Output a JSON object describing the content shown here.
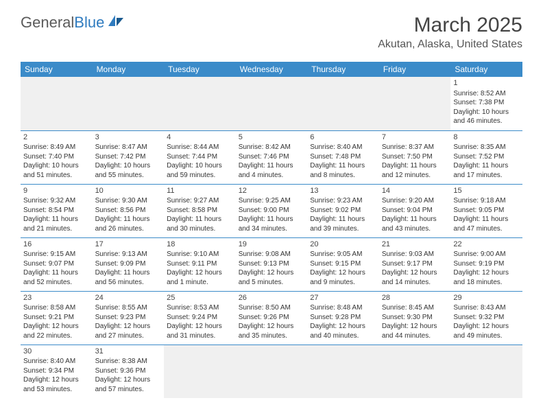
{
  "brand": {
    "part1": "General",
    "part2": "Blue"
  },
  "title": "March 2025",
  "location": "Akutan, Alaska, United States",
  "colors": {
    "header_bg": "#3b8bc9",
    "header_text": "#ffffff",
    "body_text": "#333333",
    "brand_gray": "#5a5a5a",
    "brand_blue": "#2f7bbf",
    "border": "#3b8bc9",
    "empty_bg": "#f0f0f0"
  },
  "typography": {
    "title_fontsize": 30,
    "location_fontsize": 16,
    "dayheader_fontsize": 12,
    "cell_fontsize": 10
  },
  "day_headers": [
    "Sunday",
    "Monday",
    "Tuesday",
    "Wednesday",
    "Thursday",
    "Friday",
    "Saturday"
  ],
  "weeks": [
    [
      null,
      null,
      null,
      null,
      null,
      null,
      {
        "n": "1",
        "sr": "Sunrise: 8:52 AM",
        "ss": "Sunset: 7:38 PM",
        "d1": "Daylight: 10 hours",
        "d2": "and 46 minutes."
      }
    ],
    [
      {
        "n": "2",
        "sr": "Sunrise: 8:49 AM",
        "ss": "Sunset: 7:40 PM",
        "d1": "Daylight: 10 hours",
        "d2": "and 51 minutes."
      },
      {
        "n": "3",
        "sr": "Sunrise: 8:47 AM",
        "ss": "Sunset: 7:42 PM",
        "d1": "Daylight: 10 hours",
        "d2": "and 55 minutes."
      },
      {
        "n": "4",
        "sr": "Sunrise: 8:44 AM",
        "ss": "Sunset: 7:44 PM",
        "d1": "Daylight: 10 hours",
        "d2": "and 59 minutes."
      },
      {
        "n": "5",
        "sr": "Sunrise: 8:42 AM",
        "ss": "Sunset: 7:46 PM",
        "d1": "Daylight: 11 hours",
        "d2": "and 4 minutes."
      },
      {
        "n": "6",
        "sr": "Sunrise: 8:40 AM",
        "ss": "Sunset: 7:48 PM",
        "d1": "Daylight: 11 hours",
        "d2": "and 8 minutes."
      },
      {
        "n": "7",
        "sr": "Sunrise: 8:37 AM",
        "ss": "Sunset: 7:50 PM",
        "d1": "Daylight: 11 hours",
        "d2": "and 12 minutes."
      },
      {
        "n": "8",
        "sr": "Sunrise: 8:35 AM",
        "ss": "Sunset: 7:52 PM",
        "d1": "Daylight: 11 hours",
        "d2": "and 17 minutes."
      }
    ],
    [
      {
        "n": "9",
        "sr": "Sunrise: 9:32 AM",
        "ss": "Sunset: 8:54 PM",
        "d1": "Daylight: 11 hours",
        "d2": "and 21 minutes."
      },
      {
        "n": "10",
        "sr": "Sunrise: 9:30 AM",
        "ss": "Sunset: 8:56 PM",
        "d1": "Daylight: 11 hours",
        "d2": "and 26 minutes."
      },
      {
        "n": "11",
        "sr": "Sunrise: 9:27 AM",
        "ss": "Sunset: 8:58 PM",
        "d1": "Daylight: 11 hours",
        "d2": "and 30 minutes."
      },
      {
        "n": "12",
        "sr": "Sunrise: 9:25 AM",
        "ss": "Sunset: 9:00 PM",
        "d1": "Daylight: 11 hours",
        "d2": "and 34 minutes."
      },
      {
        "n": "13",
        "sr": "Sunrise: 9:23 AM",
        "ss": "Sunset: 9:02 PM",
        "d1": "Daylight: 11 hours",
        "d2": "and 39 minutes."
      },
      {
        "n": "14",
        "sr": "Sunrise: 9:20 AM",
        "ss": "Sunset: 9:04 PM",
        "d1": "Daylight: 11 hours",
        "d2": "and 43 minutes."
      },
      {
        "n": "15",
        "sr": "Sunrise: 9:18 AM",
        "ss": "Sunset: 9:05 PM",
        "d1": "Daylight: 11 hours",
        "d2": "and 47 minutes."
      }
    ],
    [
      {
        "n": "16",
        "sr": "Sunrise: 9:15 AM",
        "ss": "Sunset: 9:07 PM",
        "d1": "Daylight: 11 hours",
        "d2": "and 52 minutes."
      },
      {
        "n": "17",
        "sr": "Sunrise: 9:13 AM",
        "ss": "Sunset: 9:09 PM",
        "d1": "Daylight: 11 hours",
        "d2": "and 56 minutes."
      },
      {
        "n": "18",
        "sr": "Sunrise: 9:10 AM",
        "ss": "Sunset: 9:11 PM",
        "d1": "Daylight: 12 hours",
        "d2": "and 1 minute."
      },
      {
        "n": "19",
        "sr": "Sunrise: 9:08 AM",
        "ss": "Sunset: 9:13 PM",
        "d1": "Daylight: 12 hours",
        "d2": "and 5 minutes."
      },
      {
        "n": "20",
        "sr": "Sunrise: 9:05 AM",
        "ss": "Sunset: 9:15 PM",
        "d1": "Daylight: 12 hours",
        "d2": "and 9 minutes."
      },
      {
        "n": "21",
        "sr": "Sunrise: 9:03 AM",
        "ss": "Sunset: 9:17 PM",
        "d1": "Daylight: 12 hours",
        "d2": "and 14 minutes."
      },
      {
        "n": "22",
        "sr": "Sunrise: 9:00 AM",
        "ss": "Sunset: 9:19 PM",
        "d1": "Daylight: 12 hours",
        "d2": "and 18 minutes."
      }
    ],
    [
      {
        "n": "23",
        "sr": "Sunrise: 8:58 AM",
        "ss": "Sunset: 9:21 PM",
        "d1": "Daylight: 12 hours",
        "d2": "and 22 minutes."
      },
      {
        "n": "24",
        "sr": "Sunrise: 8:55 AM",
        "ss": "Sunset: 9:23 PM",
        "d1": "Daylight: 12 hours",
        "d2": "and 27 minutes."
      },
      {
        "n": "25",
        "sr": "Sunrise: 8:53 AM",
        "ss": "Sunset: 9:24 PM",
        "d1": "Daylight: 12 hours",
        "d2": "and 31 minutes."
      },
      {
        "n": "26",
        "sr": "Sunrise: 8:50 AM",
        "ss": "Sunset: 9:26 PM",
        "d1": "Daylight: 12 hours",
        "d2": "and 35 minutes."
      },
      {
        "n": "27",
        "sr": "Sunrise: 8:48 AM",
        "ss": "Sunset: 9:28 PM",
        "d1": "Daylight: 12 hours",
        "d2": "and 40 minutes."
      },
      {
        "n": "28",
        "sr": "Sunrise: 8:45 AM",
        "ss": "Sunset: 9:30 PM",
        "d1": "Daylight: 12 hours",
        "d2": "and 44 minutes."
      },
      {
        "n": "29",
        "sr": "Sunrise: 8:43 AM",
        "ss": "Sunset: 9:32 PM",
        "d1": "Daylight: 12 hours",
        "d2": "and 49 minutes."
      }
    ],
    [
      {
        "n": "30",
        "sr": "Sunrise: 8:40 AM",
        "ss": "Sunset: 9:34 PM",
        "d1": "Daylight: 12 hours",
        "d2": "and 53 minutes."
      },
      {
        "n": "31",
        "sr": "Sunrise: 8:38 AM",
        "ss": "Sunset: 9:36 PM",
        "d1": "Daylight: 12 hours",
        "d2": "and 57 minutes."
      },
      null,
      null,
      null,
      null,
      null
    ]
  ]
}
